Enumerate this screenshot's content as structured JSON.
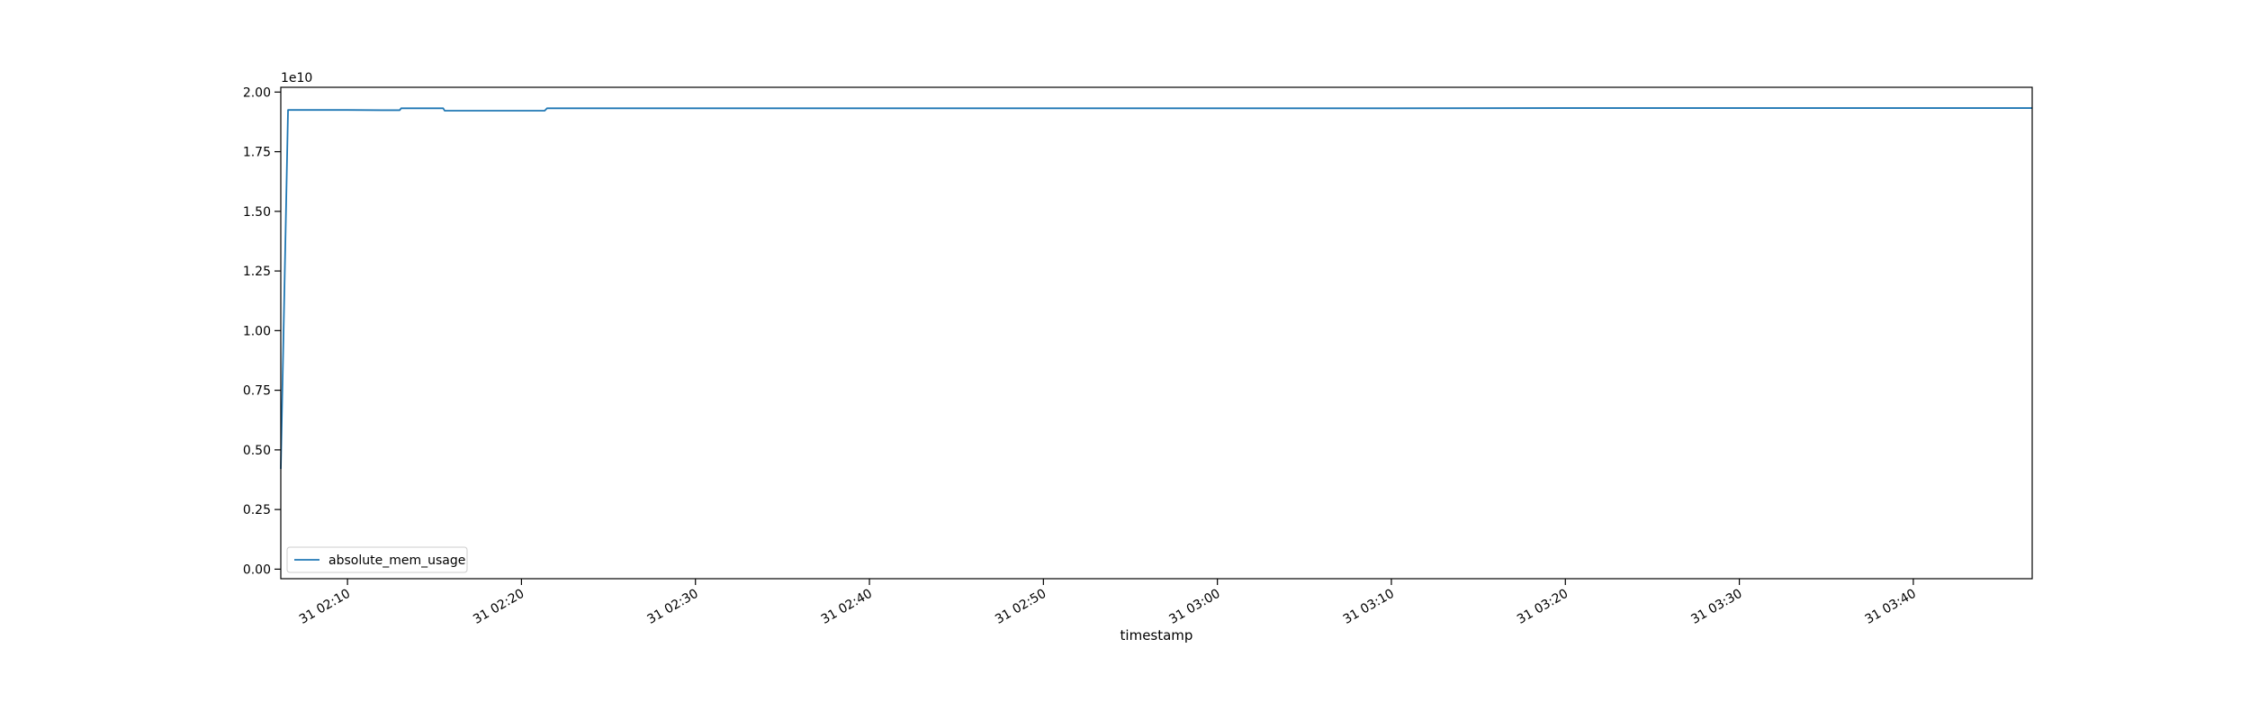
{
  "chart_data": {
    "type": "line",
    "title": "",
    "xlabel": "timestamp",
    "ylabel": "",
    "y_offset_label": "1e10",
    "x_tick_labels": [
      "31 02:10",
      "31 02:20",
      "31 02:30",
      "31 02:40",
      "31 02:50",
      "31 03:00",
      "31 03:10",
      "31 03:20",
      "31 03:30",
      "31 03:40"
    ],
    "x_tick_times": [
      "02:10",
      "02:20",
      "02:30",
      "02:40",
      "02:50",
      "03:00",
      "03:10",
      "03:20",
      "03:30",
      "03:40"
    ],
    "xlim": [
      "02:06:10",
      "03:46:50"
    ],
    "y_tick_labels": [
      "0.00",
      "0.25",
      "0.50",
      "0.75",
      "1.00",
      "1.25",
      "1.50",
      "1.75",
      "2.00"
    ],
    "y_ticks": [
      0.0,
      0.25,
      0.5,
      0.75,
      1.0,
      1.25,
      1.5,
      1.75,
      2.0
    ],
    "ylim": [
      -0.04,
      2.02
    ],
    "y_scale": 10000000000.0,
    "grid": false,
    "legend_position": "lower-left",
    "series": [
      {
        "name": "absolute_mem_usage",
        "color": "#1f77b4",
        "x": [
          "02:06:10",
          "02:06:35",
          "02:06:38",
          "02:07:00",
          "02:10:00",
          "02:12:00",
          "02:13:00",
          "02:13:05",
          "02:15:30",
          "02:15:35",
          "02:18:00",
          "02:21:20",
          "02:21:28",
          "02:30:00",
          "02:40:00",
          "02:50:00",
          "03:00:00",
          "03:10:00",
          "03:20:00",
          "03:30:00",
          "03:40:00",
          "03:46:50"
        ],
        "values": [
          0.42,
          1.925,
          1.925,
          1.925,
          1.925,
          1.924,
          1.924,
          1.932,
          1.932,
          1.922,
          1.922,
          1.922,
          1.932,
          1.932,
          1.932,
          1.932,
          1.932,
          1.932,
          1.933,
          1.933,
          1.933,
          1.933
        ]
      }
    ]
  }
}
